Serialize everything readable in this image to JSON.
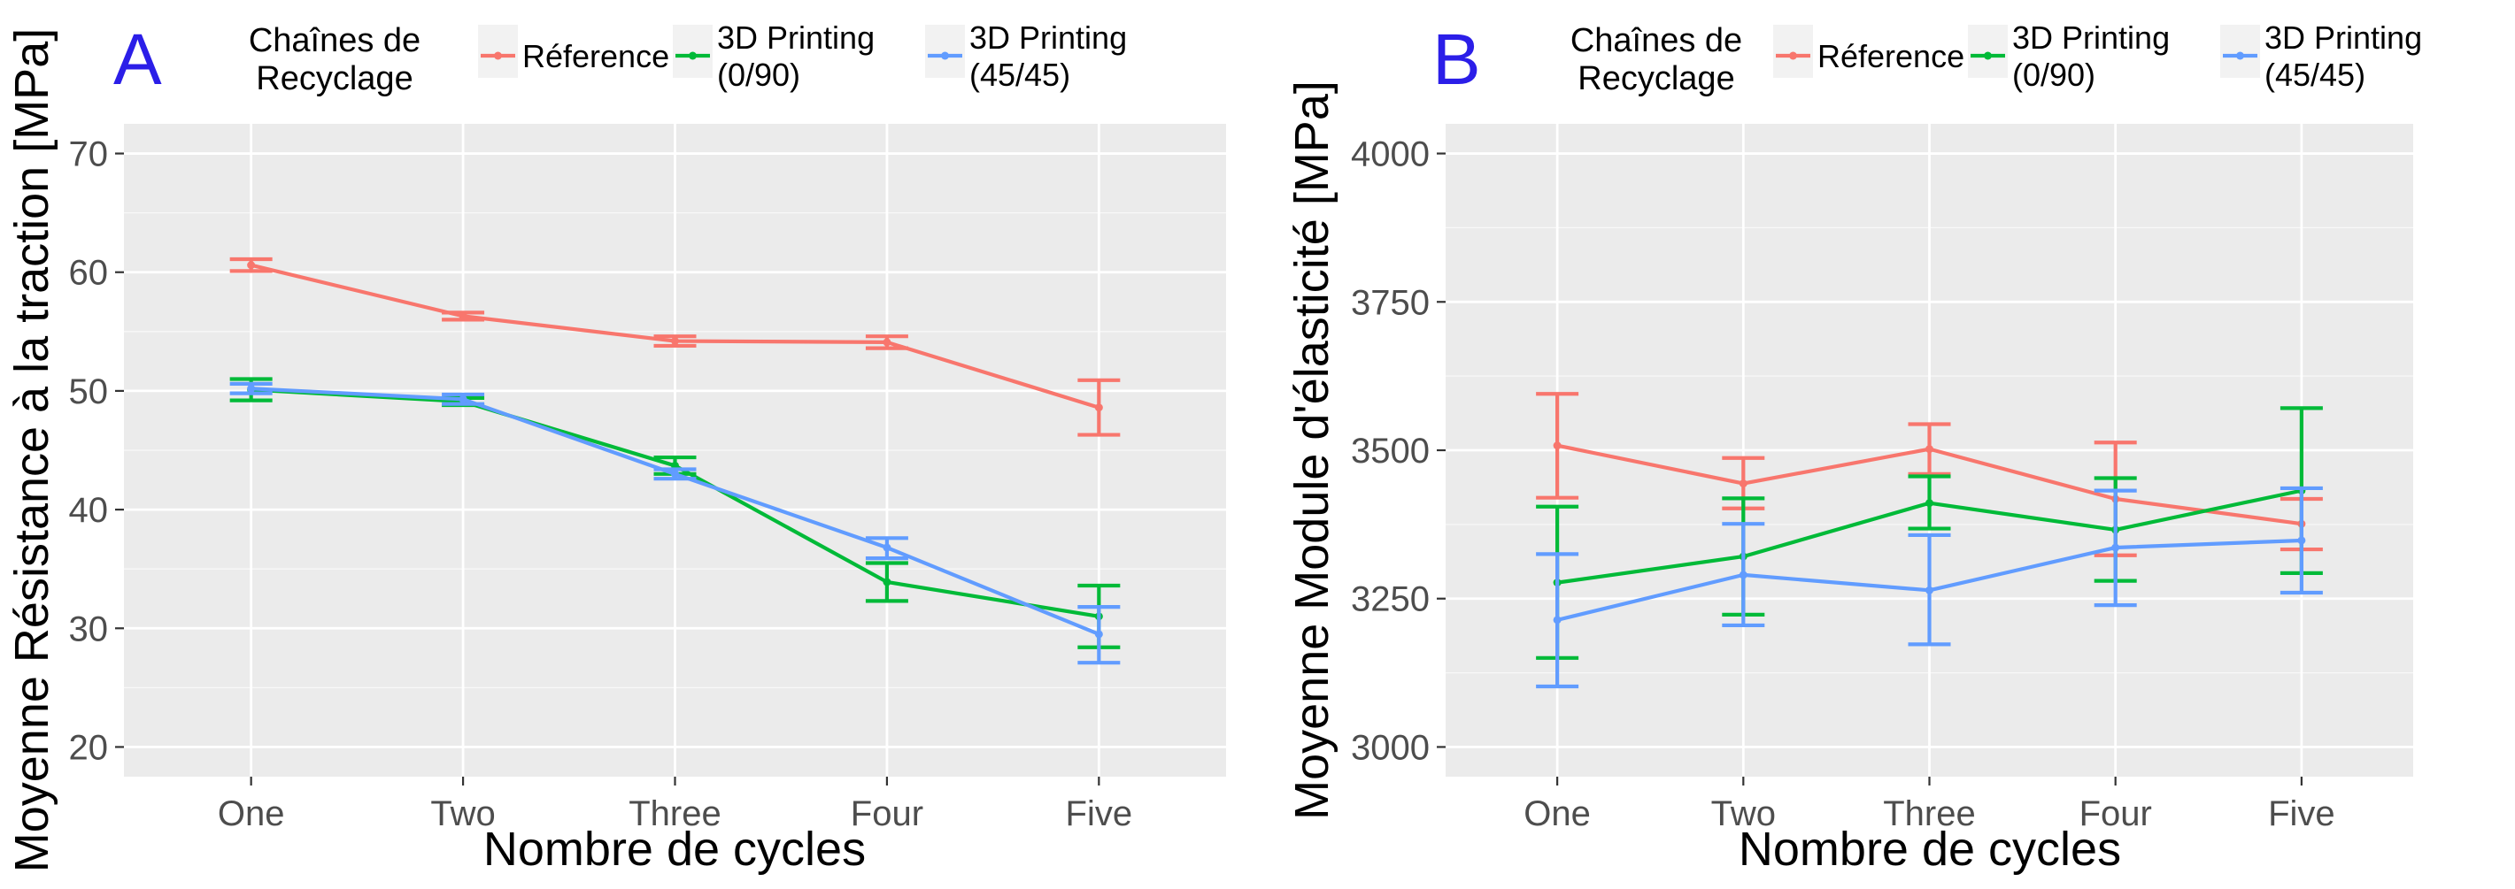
{
  "chart_data": [
    {
      "type": "line",
      "panel_label": "A",
      "ylabel": "Moyenne Résistance à la traction [MPa]",
      "xlabel": "Nombre de cycles",
      "categories": [
        "One",
        "Two",
        "Three",
        "Four",
        "Five"
      ],
      "ylim": [
        17.5,
        72.5
      ],
      "yticks": [
        20,
        30,
        40,
        50,
        60,
        70
      ],
      "grid": true,
      "legend": {
        "placement": "top",
        "title_lines": [
          "Chaînes de",
          "Recyclage"
        ],
        "entries": [
          {
            "series": 0,
            "lines": [
              "Réference"
            ]
          },
          {
            "series": 1,
            "lines": [
              "3D Printing",
              "(0/90)"
            ]
          },
          {
            "series": 2,
            "lines": [
              "3D Printing",
              "(45/45)"
            ]
          }
        ]
      },
      "series": [
        {
          "values": [
            60.6,
            56.3,
            54.2,
            54.1,
            48.6
          ],
          "err_low": [
            60.1,
            56.0,
            53.8,
            53.6,
            46.3
          ],
          "err_high": [
            61.1,
            56.6,
            54.6,
            54.6,
            50.9
          ]
        },
        {
          "values": [
            50.1,
            49.1,
            43.7,
            33.9,
            31.0
          ],
          "err_low": [
            49.2,
            48.8,
            43.0,
            32.3,
            28.4
          ],
          "err_high": [
            51.0,
            49.4,
            44.4,
            35.5,
            33.6
          ]
        },
        {
          "values": [
            50.2,
            49.3,
            43.0,
            36.8,
            29.5
          ],
          "err_low": [
            49.8,
            48.9,
            42.6,
            35.9,
            27.1
          ],
          "err_high": [
            50.6,
            49.7,
            43.4,
            37.6,
            31.8
          ]
        }
      ]
    },
    {
      "type": "line",
      "panel_label": "B",
      "ylabel": "Moyenne Module d'élasticité [MPa]",
      "xlabel": "Nombre de cycles",
      "categories": [
        "One",
        "Two",
        "Three",
        "Four",
        "Five"
      ],
      "ylim": [
        2950,
        4050
      ],
      "yticks": [
        3000,
        3250,
        3500,
        3750,
        4000
      ],
      "grid": true,
      "legend": {
        "placement": "top",
        "title_lines": [
          "Chaînes de",
          "Recyclage"
        ],
        "entries": [
          {
            "series": 0,
            "lines": [
              "Réference"
            ]
          },
          {
            "series": 1,
            "lines": [
              "3D Printing",
              "(0/90)"
            ]
          },
          {
            "series": 2,
            "lines": [
              "3D Printing",
              "(45/45)"
            ]
          }
        ]
      },
      "series": [
        {
          "values": [
            3508,
            3444,
            3502,
            3418,
            3376
          ],
          "err_low": [
            3420,
            3402,
            3460,
            3323,
            3333
          ],
          "err_high": [
            3595,
            3487,
            3544,
            3513,
            3418
          ]
        },
        {
          "values": [
            3277,
            3321,
            3411,
            3366,
            3432
          ],
          "err_low": [
            3150,
            3223,
            3368,
            3280,
            3293
          ],
          "err_high": [
            3405,
            3419,
            3456,
            3453,
            3571
          ]
        },
        {
          "values": [
            3214,
            3290,
            3264,
            3336,
            3348
          ],
          "err_low": [
            3102,
            3205,
            3173,
            3239,
            3260
          ],
          "err_high": [
            3325,
            3376,
            3357,
            3432,
            3436
          ]
        }
      ]
    }
  ],
  "colors": {
    "series": [
      "#f8766d",
      "#00ba38",
      "#619cff"
    ],
    "panel_background": "#ebebeb",
    "grid_major": "#ffffff",
    "legend_key_background": "#f2f2f2",
    "panel_letter": "#2b1ee8",
    "tick_label": "#4d4d4d",
    "tick_mark": "#333333"
  }
}
